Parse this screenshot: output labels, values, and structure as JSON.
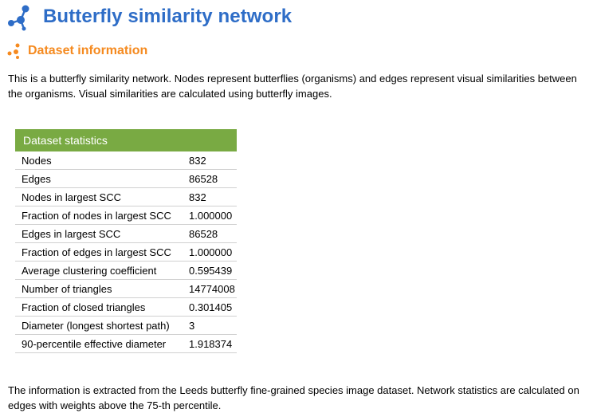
{
  "page": {
    "title": "Butterfly similarity network",
    "section_title": "Dataset information",
    "intro": "This is a butterfly similarity network. Nodes represent butterflies (organisms) and edges represent visual similarities between the organisms. Visual similarities are calculated using butterfly images.",
    "footer": "The information is extracted from the Leeds butterfly fine-grained species image dataset. Network statistics are calculated on edges with weights above the 75-th percentile."
  },
  "colors": {
    "title": "#2e6dc7",
    "section": "#f58a1f",
    "table_header": "#79aa43"
  },
  "icons": {
    "title_icon": "network-nodes-icon",
    "section_icon": "dots-icon"
  },
  "stats_table": {
    "header": "Dataset statistics",
    "rows": [
      {
        "label": "Nodes",
        "value": "832"
      },
      {
        "label": "Edges",
        "value": "86528"
      },
      {
        "label": "Nodes in largest SCC",
        "value": "832"
      },
      {
        "label": "Fraction of nodes in largest SCC",
        "value": "1.000000"
      },
      {
        "label": "Edges in largest SCC",
        "value": "86528"
      },
      {
        "label": "Fraction of edges in largest SCC",
        "value": "1.000000"
      },
      {
        "label": "Average clustering coefficient",
        "value": "0.595439"
      },
      {
        "label": "Number of triangles",
        "value": "14774008"
      },
      {
        "label": "Fraction of closed triangles",
        "value": "0.301405"
      },
      {
        "label": "Diameter (longest shortest path)",
        "value": "3"
      },
      {
        "label": "90-percentile effective diameter",
        "value": "1.918374"
      }
    ]
  }
}
